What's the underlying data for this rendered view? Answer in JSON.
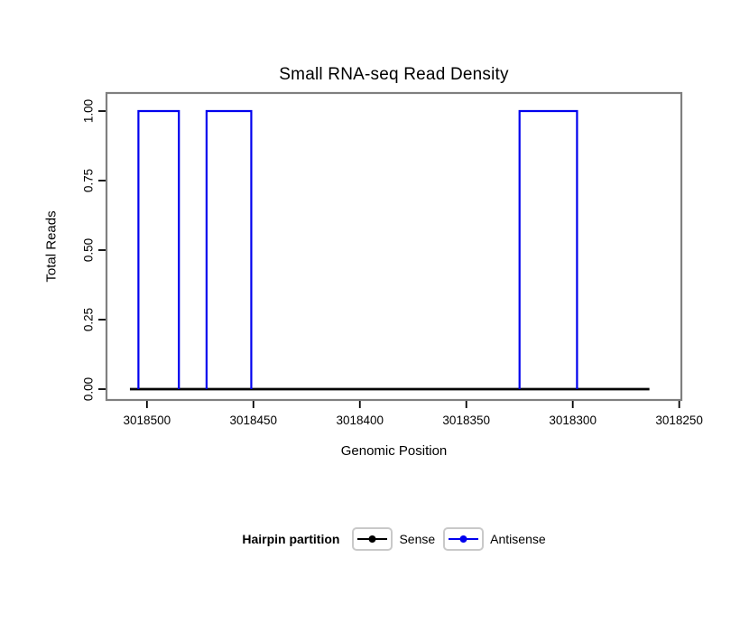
{
  "chart_data": {
    "type": "line",
    "title": "Small RNA-seq Read Density",
    "xlabel": "Genomic Position",
    "ylabel": "Total Reads",
    "x_axis_reversed": true,
    "xlim": [
      3018519,
      3018249
    ],
    "x_ticks": [
      3018500,
      3018450,
      3018400,
      3018350,
      3018300,
      3018250
    ],
    "ylim": [
      0,
      1
    ],
    "y_ticks": [
      0,
      0.25,
      0.5,
      0.75,
      1
    ],
    "y_tick_labels": [
      "0.00",
      "0.25",
      "0.50",
      "0.75",
      "1.00"
    ],
    "grid": false,
    "legend": {
      "title": "Hairpin partition",
      "position": "bottom"
    },
    "series": [
      {
        "name": "Sense",
        "color": "#000000",
        "shape": "baseline",
        "points": [
          [
            3018508,
            0
          ],
          [
            3018264,
            0
          ]
        ]
      },
      {
        "name": "Antisense",
        "color": "#0000EE",
        "shape": "pulses",
        "baseline": 0,
        "pulses": [
          {
            "from": 3018504,
            "to": 3018485,
            "value": 1
          },
          {
            "from": 3018472,
            "to": 3018451,
            "value": 1
          },
          {
            "from": 3018325,
            "to": 3018298,
            "value": 1
          }
        ]
      }
    ],
    "colors": {
      "panel_border": "#7F7F7F",
      "tick": "#000000",
      "legend_key_border": "#C9C9C9",
      "legend_key_fill": "#FFFFFF"
    }
  }
}
